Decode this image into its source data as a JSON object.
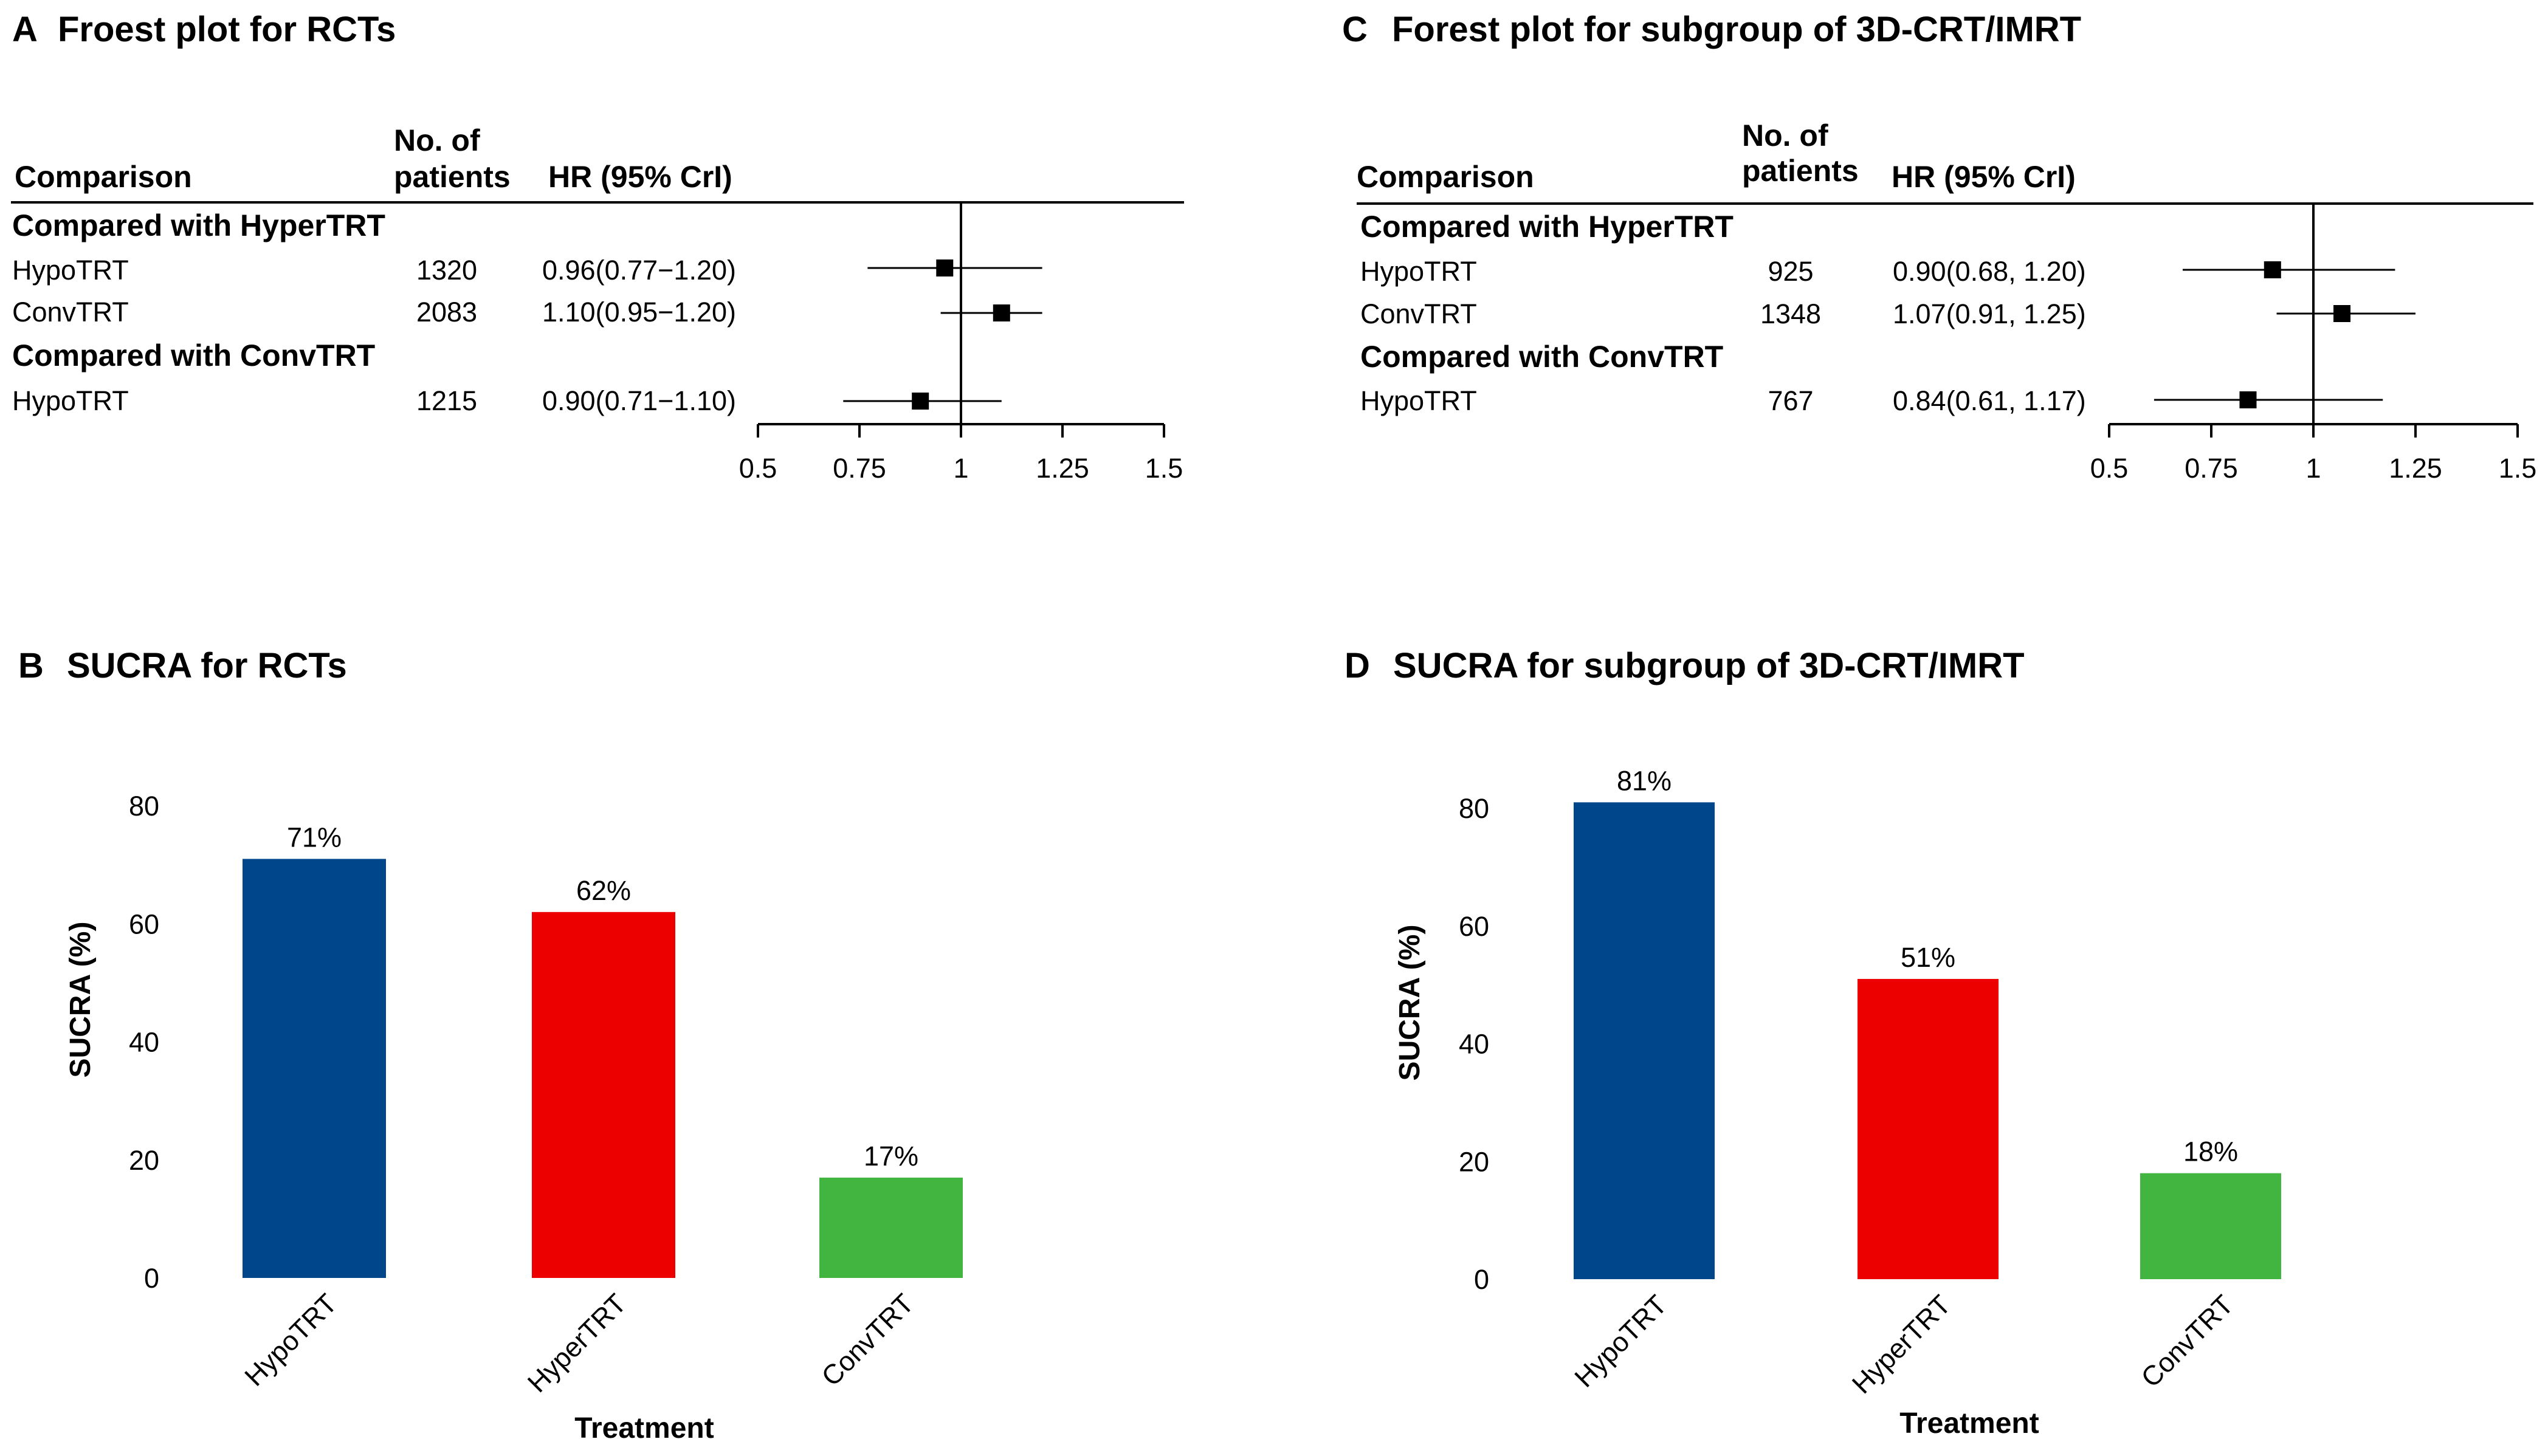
{
  "panels": [
    {
      "letter": "A",
      "title": "Froest plot for RCTs",
      "type": "forest",
      "header": {
        "comparison": "Comparison",
        "patients_line1": "No. of",
        "patients_line2": "patients",
        "hr": "HR (95% CrI)"
      },
      "groups": [
        {
          "label": "Compared with HyperTRT",
          "rows": [
            {
              "name": "HypoTRT",
              "patients": "1320",
              "hr_text": "0.96(0.77−1.20)",
              "hr": 0.96,
              "lo": 0.77,
              "hi": 1.2
            },
            {
              "name": "ConvTRT",
              "patients": "2083",
              "hr_text": "1.10(0.95−1.20)",
              "hr": 1.1,
              "lo": 0.95,
              "hi": 1.2
            }
          ]
        },
        {
          "label": "Compared with ConvTRT",
          "rows": [
            {
              "name": "HypoTRT",
              "patients": "1215",
              "hr_text": "0.90(0.71−1.10)",
              "hr": 0.9,
              "lo": 0.71,
              "hi": 1.1
            }
          ]
        }
      ],
      "axis": {
        "min": 0.5,
        "max": 1.5,
        "ref": 1,
        "ticks": [
          "0.5",
          "0.75",
          "1",
          "1.25",
          "1.5"
        ]
      }
    },
    {
      "letter": "C",
      "title": "Forest plot for subgroup of 3D-CRT/IMRT",
      "type": "forest",
      "header": {
        "comparison": "Comparison",
        "patients_line1": "No. of",
        "patients_line2": "patients",
        "hr": "HR (95% CrI)"
      },
      "groups": [
        {
          "label": "Compared with HyperTRT",
          "rows": [
            {
              "name": "HypoTRT",
              "patients": "925",
              "hr_text": "0.90(0.68, 1.20)",
              "hr": 0.9,
              "lo": 0.68,
              "hi": 1.2
            },
            {
              "name": "ConvTRT",
              "patients": "1348",
              "hr_text": "1.07(0.91, 1.25)",
              "hr": 1.07,
              "lo": 0.91,
              "hi": 1.25
            }
          ]
        },
        {
          "label": "Compared with ConvTRT",
          "rows": [
            {
              "name": "HypoTRT",
              "patients": "767",
              "hr_text": "0.84(0.61, 1.17)",
              "hr": 0.84,
              "lo": 0.61,
              "hi": 1.17
            }
          ]
        }
      ],
      "axis": {
        "min": 0.5,
        "max": 1.5,
        "ref": 1,
        "ticks": [
          "0.5",
          "0.75",
          "1",
          "1.25",
          "1.5"
        ]
      }
    },
    {
      "letter": "B",
      "title": "SUCRA for RCTs",
      "type": "bar",
      "categories": [
        "HypoTRT",
        "HyperTRT",
        "ConvTRT"
      ],
      "values": [
        71,
        62,
        17
      ],
      "labels": [
        "71%",
        "62%",
        "17%"
      ],
      "colors": [
        "#00468b",
        "#ed0000",
        "#42b540"
      ],
      "ylabel": "SUCRA (%)",
      "xlabel": "Treatment",
      "ylim": [
        0,
        80
      ],
      "yticks": [
        "0",
        "20",
        "40",
        "60",
        "80"
      ]
    },
    {
      "letter": "D",
      "title": "SUCRA for subgroup of 3D-CRT/IMRT",
      "type": "bar",
      "categories": [
        "HypoTRT",
        "HyperTRT",
        "ConvTRT"
      ],
      "values": [
        81,
        51,
        18
      ],
      "labels": [
        "81%",
        "51%",
        "18%"
      ],
      "colors": [
        "#00468b",
        "#ed0000",
        "#42b540"
      ],
      "ylabel": "SUCRA (%)",
      "xlabel": "Treatment",
      "ylim": [
        0,
        80
      ],
      "yticks": [
        "0",
        "20",
        "40",
        "60",
        "80"
      ]
    }
  ],
  "chart_data": [
    {
      "type": "forest",
      "title": "Froest plot for RCTs",
      "xlim": [
        0.5,
        1.5
      ],
      "rows": [
        {
          "group": "Compared with HyperTRT",
          "name": "HypoTRT",
          "patients": 1320,
          "hr": 0.96,
          "lo": 0.77,
          "hi": 1.2
        },
        {
          "group": "Compared with HyperTRT",
          "name": "ConvTRT",
          "patients": 2083,
          "hr": 1.1,
          "lo": 0.95,
          "hi": 1.2
        },
        {
          "group": "Compared with ConvTRT",
          "name": "HypoTRT",
          "patients": 1215,
          "hr": 0.9,
          "lo": 0.71,
          "hi": 1.1
        }
      ]
    },
    {
      "type": "forest",
      "title": "Forest plot for subgroup of 3D-CRT/IMRT",
      "xlim": [
        0.5,
        1.5
      ],
      "rows": [
        {
          "group": "Compared with HyperTRT",
          "name": "HypoTRT",
          "patients": 925,
          "hr": 0.9,
          "lo": 0.68,
          "hi": 1.2
        },
        {
          "group": "Compared with HyperTRT",
          "name": "ConvTRT",
          "patients": 1348,
          "hr": 1.07,
          "lo": 0.91,
          "hi": 1.25
        },
        {
          "group": "Compared with ConvTRT",
          "name": "HypoTRT",
          "patients": 767,
          "hr": 0.84,
          "lo": 0.61,
          "hi": 1.17
        }
      ]
    },
    {
      "type": "bar",
      "title": "SUCRA for RCTs",
      "categories": [
        "HypoTRT",
        "HyperTRT",
        "ConvTRT"
      ],
      "values": [
        71,
        62,
        17
      ],
      "ylabel": "SUCRA (%)",
      "xlabel": "Treatment",
      "ylim": [
        0,
        80
      ]
    },
    {
      "type": "bar",
      "title": "SUCRA for subgroup of 3D-CRT/IMRT",
      "categories": [
        "HypoTRT",
        "HyperTRT",
        "ConvTRT"
      ],
      "values": [
        81,
        51,
        18
      ],
      "ylabel": "SUCRA (%)",
      "xlabel": "Treatment",
      "ylim": [
        0,
        80
      ]
    }
  ]
}
